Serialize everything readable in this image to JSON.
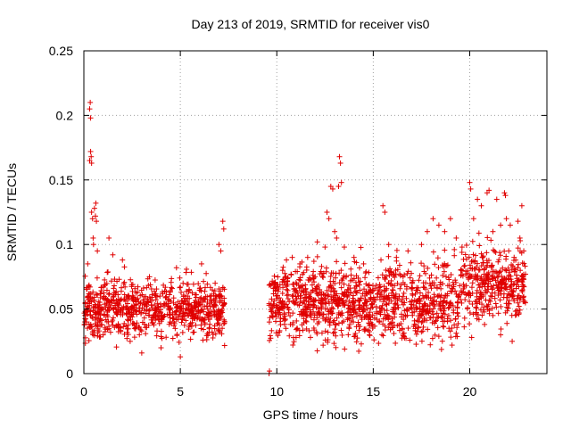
{
  "chart_data": {
    "type": "scatter",
    "title": "Day 213 of 2019, SRMTID for receiver vis0",
    "xlabel": "GPS time / hours",
    "ylabel": "SRMTID / TECUs",
    "xlim": [
      0,
      24
    ],
    "ylim": [
      0,
      0.25
    ],
    "xticks": [
      0,
      5,
      10,
      15,
      20
    ],
    "xtick_labels": [
      "0",
      "5",
      "10",
      "15",
      "20"
    ],
    "yticks": [
      0,
      0.05,
      0.1,
      0.15,
      0.2,
      0.25
    ],
    "ytick_labels": [
      "0",
      "0.05",
      "0.1",
      "0.15",
      "0.2",
      "0.25"
    ],
    "grid": true,
    "marker": "+",
    "color": "#e00000",
    "series": [
      {
        "name": "vis0",
        "segments": [
          {
            "x_range": [
              0.0,
              7.3
            ],
            "typical_range": [
              0.02,
              0.09
            ],
            "center": 0.05
          },
          {
            "x_range": [
              9.6,
              22.9
            ],
            "typical_range": [
              0.02,
              0.11
            ],
            "center": 0.055
          }
        ],
        "points": [
          [
            0.2,
            0.085
          ],
          [
            0.25,
            0.06
          ],
          [
            0.3,
            0.165
          ],
          [
            0.3,
            0.205
          ],
          [
            0.33,
            0.21
          ],
          [
            0.35,
            0.198
          ],
          [
            0.35,
            0.172
          ],
          [
            0.38,
            0.168
          ],
          [
            0.4,
            0.163
          ],
          [
            0.4,
            0.125
          ],
          [
            0.45,
            0.12
          ],
          [
            0.48,
            0.105
          ],
          [
            0.5,
            0.1
          ],
          [
            0.55,
            0.128
          ],
          [
            0.6,
            0.122
          ],
          [
            0.62,
            0.132
          ],
          [
            0.65,
            0.118
          ],
          [
            0.7,
            0.095
          ],
          [
            1.3,
            0.105
          ],
          [
            1.5,
            0.092
          ],
          [
            2.0,
            0.088
          ],
          [
            3.4,
            0.075
          ],
          [
            4.8,
            0.082
          ],
          [
            6.1,
            0.085
          ],
          [
            7.0,
            0.1
          ],
          [
            7.1,
            0.095
          ],
          [
            7.2,
            0.118
          ],
          [
            7.25,
            0.112
          ],
          [
            9.6,
            0.0
          ],
          [
            9.62,
            0.002
          ],
          [
            10.3,
            0.08
          ],
          [
            10.5,
            0.088
          ],
          [
            10.8,
            0.09
          ],
          [
            11.2,
            0.085
          ],
          [
            11.6,
            0.09
          ],
          [
            12.1,
            0.102
          ],
          [
            12.5,
            0.098
          ],
          [
            12.6,
            0.125
          ],
          [
            12.7,
            0.12
          ],
          [
            12.8,
            0.145
          ],
          [
            12.9,
            0.143
          ],
          [
            13.0,
            0.11
          ],
          [
            13.1,
            0.105
          ],
          [
            13.2,
            0.145
          ],
          [
            13.25,
            0.168
          ],
          [
            13.3,
            0.163
          ],
          [
            13.35,
            0.148
          ],
          [
            13.5,
            0.098
          ],
          [
            14.0,
            0.09
          ],
          [
            14.5,
            0.085
          ],
          [
            15.4,
            0.088
          ],
          [
            15.5,
            0.13
          ],
          [
            15.6,
            0.125
          ],
          [
            15.8,
            0.1
          ],
          [
            16.2,
            0.09
          ],
          [
            16.8,
            0.095
          ],
          [
            17.5,
            0.1
          ],
          [
            17.8,
            0.11
          ],
          [
            18.1,
            0.12
          ],
          [
            18.4,
            0.115
          ],
          [
            18.7,
            0.11
          ],
          [
            19.0,
            0.12
          ],
          [
            19.3,
            0.105
          ],
          [
            19.6,
            0.098
          ],
          [
            20.0,
            0.148
          ],
          [
            20.05,
            0.143
          ],
          [
            20.2,
            0.12
          ],
          [
            20.4,
            0.135
          ],
          [
            20.6,
            0.13
          ],
          [
            20.9,
            0.14
          ],
          [
            21.0,
            0.142
          ],
          [
            21.2,
            0.11
          ],
          [
            21.4,
            0.135
          ],
          [
            21.6,
            0.115
          ],
          [
            21.8,
            0.14
          ],
          [
            21.85,
            0.138
          ],
          [
            21.9,
            0.12
          ],
          [
            22.1,
            0.115
          ],
          [
            22.3,
            0.09
          ],
          [
            22.5,
            0.118
          ],
          [
            22.6,
            0.105
          ],
          [
            22.7,
            0.13
          ],
          [
            22.8,
            0.095
          ],
          [
            20.1,
            0.028
          ],
          [
            21.6,
            0.03
          ],
          [
            22.2,
            0.025
          ],
          [
            16.5,
            0.035
          ],
          [
            14.8,
            0.03
          ],
          [
            12.4,
            0.022
          ],
          [
            11.0,
            0.028
          ],
          [
            3.0,
            0.016
          ],
          [
            4.0,
            0.02
          ],
          [
            5.0,
            0.013
          ],
          [
            2.4,
            0.025
          ],
          [
            1.0,
            0.03
          ]
        ]
      }
    ]
  }
}
